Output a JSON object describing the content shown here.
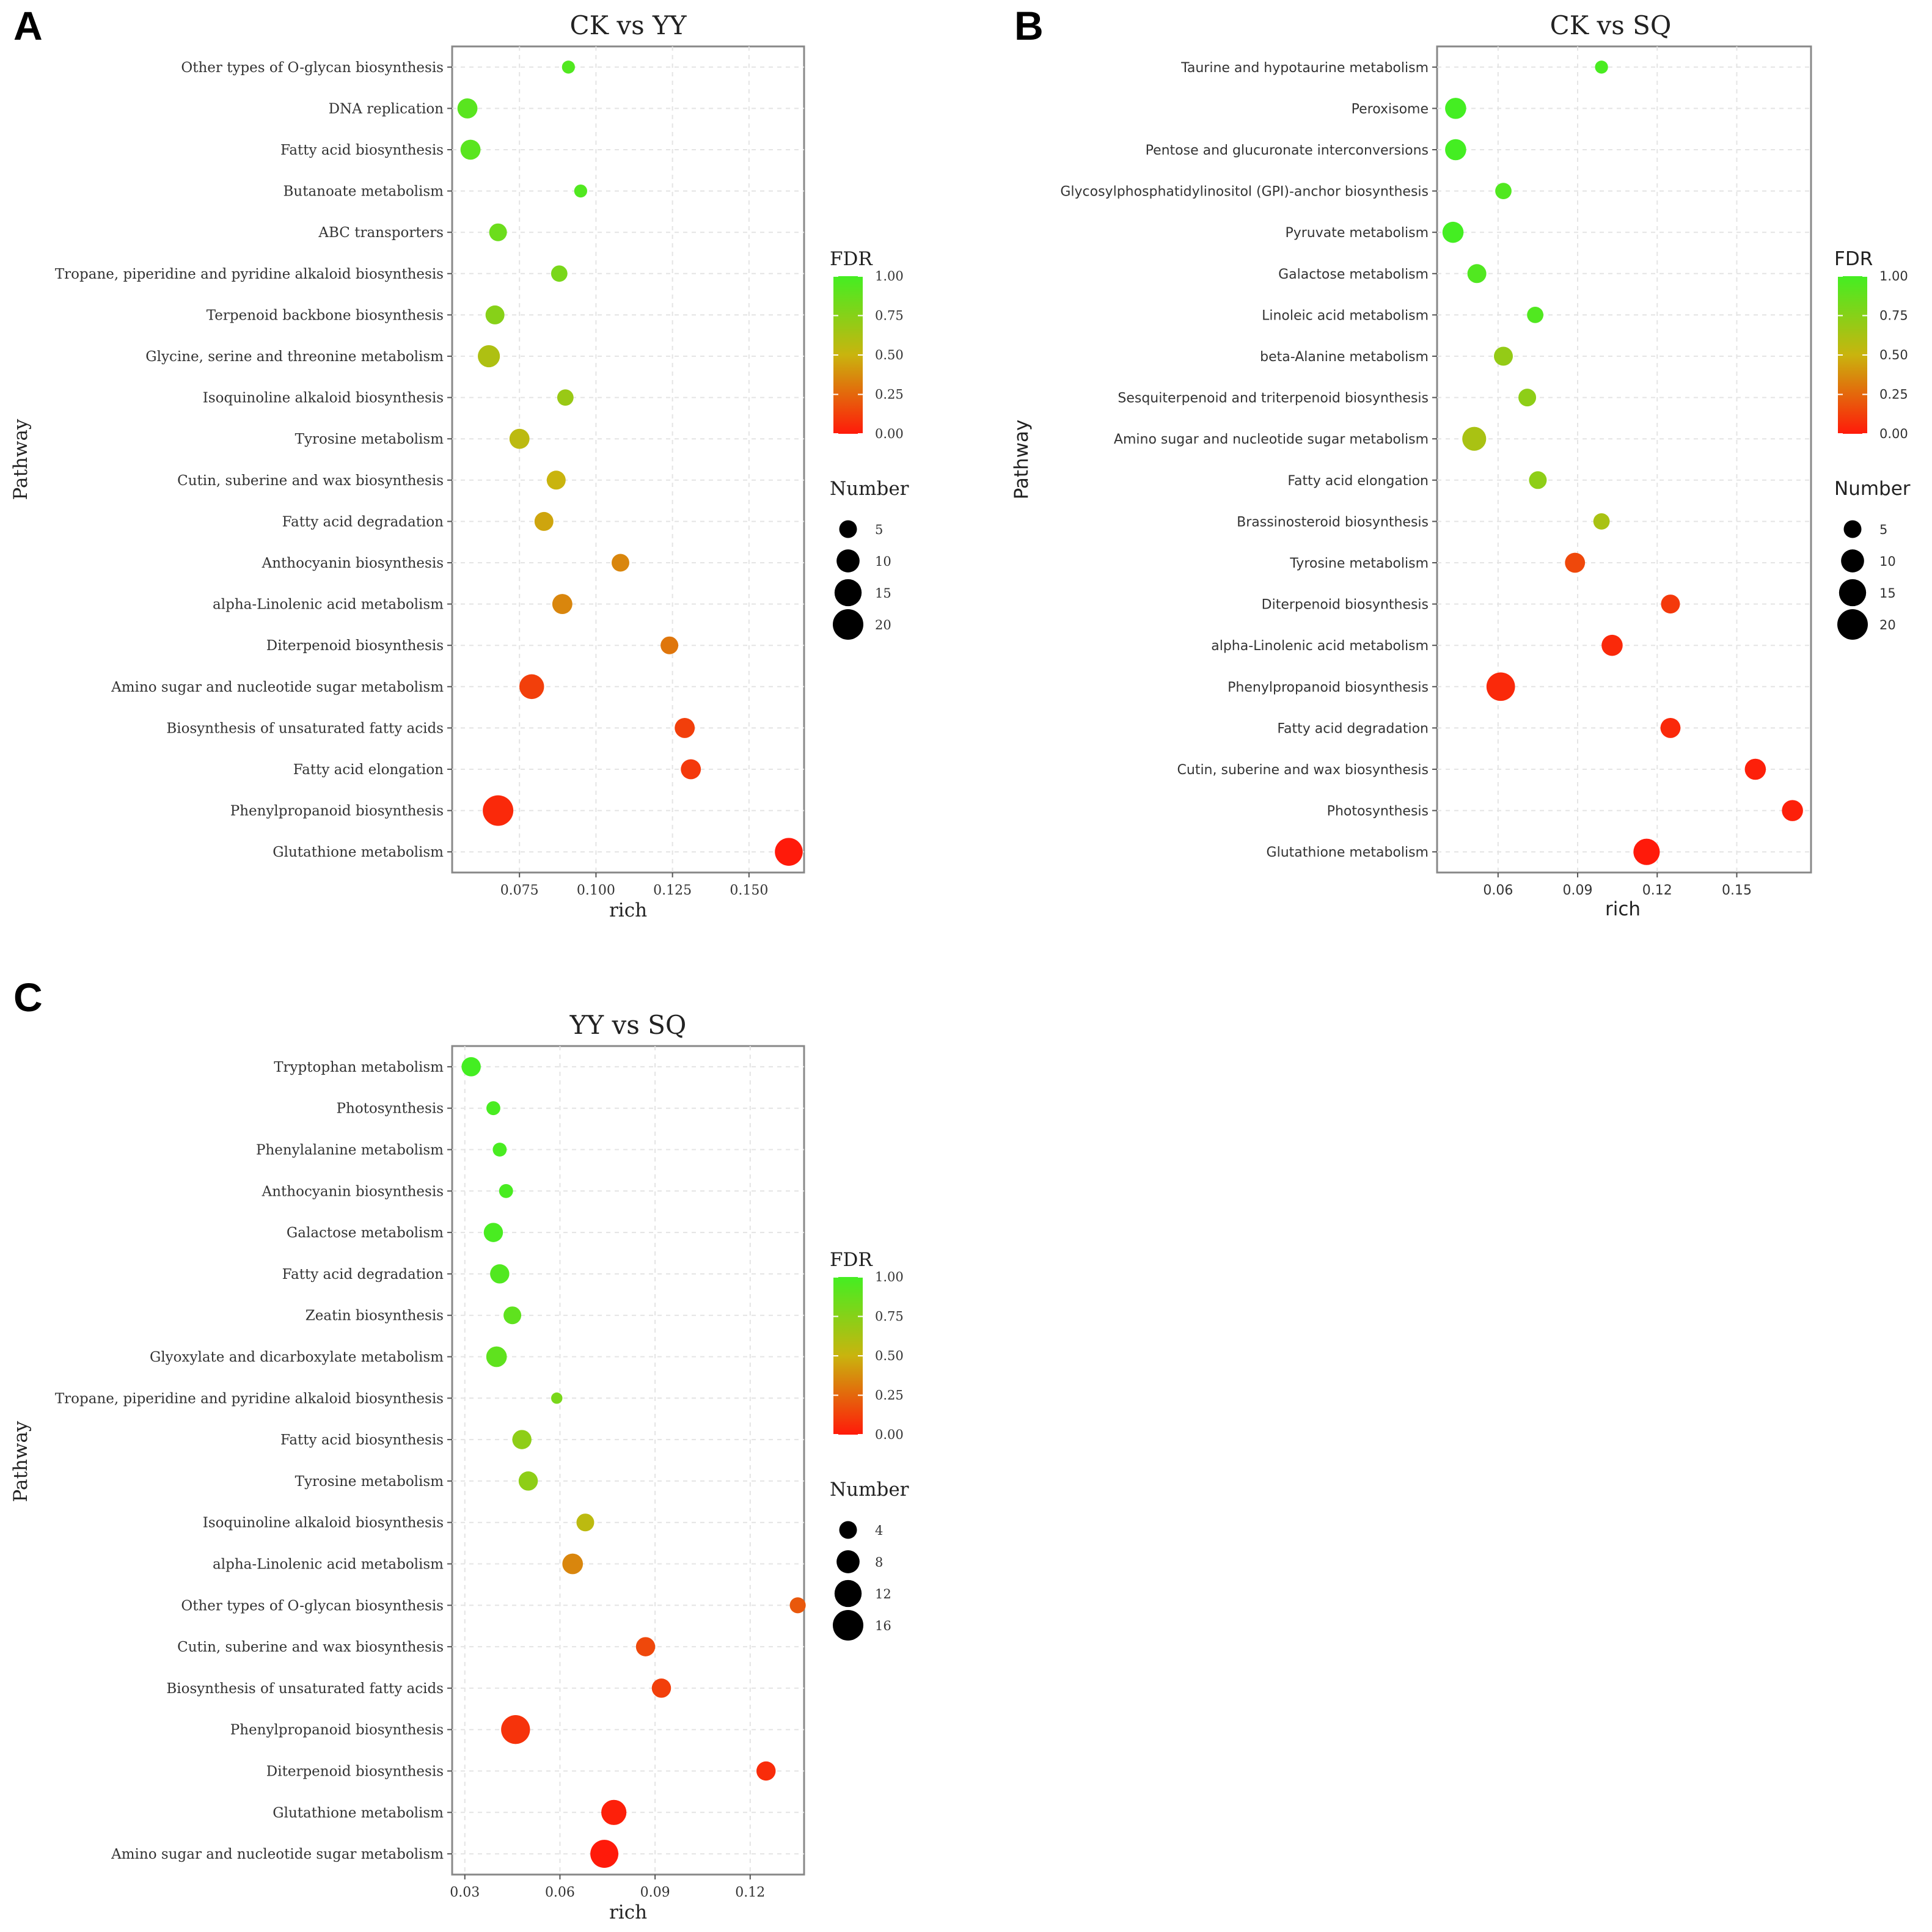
{
  "figure": {
    "panel_letters": [
      "A",
      "B",
      "C"
    ]
  },
  "colors": {
    "high_fdr": "#44ee22",
    "mid_fdr": "#c9b40e",
    "low_fdr": "#ff1a0a"
  },
  "chart_data": [
    {
      "type": "scatter",
      "panel": "A",
      "title": "CK vs YY",
      "xlabel": "rich",
      "ylabel": "Pathway",
      "xlim": [
        0.053,
        0.168
      ],
      "xticks": [
        0.075,
        0.1,
        0.125,
        0.15
      ],
      "xtick_labels": [
        "0.075",
        "0.100",
        "0.125",
        "0.150"
      ],
      "legend_fdr": {
        "title": "FDR",
        "ticks": [
          "1.00",
          "0.75",
          "0.50",
          "0.25",
          "0.00"
        ]
      },
      "legend_number": {
        "title": "Number",
        "values": [
          5,
          10,
          15,
          20
        ],
        "labels": [
          "5",
          "10",
          "15",
          "20"
        ]
      },
      "pathways": [
        {
          "name": "Other types of O-glycan biosynthesis",
          "rich": 0.091,
          "fdr": 0.95,
          "count": 2
        },
        {
          "name": "DNA replication",
          "rich": 0.058,
          "fdr": 0.92,
          "count": 7
        },
        {
          "name": "Fatty acid biosynthesis",
          "rich": 0.059,
          "fdr": 0.92,
          "count": 7
        },
        {
          "name": "Butanoate metabolism",
          "rich": 0.095,
          "fdr": 0.95,
          "count": 2
        },
        {
          "name": "ABC transporters",
          "rich": 0.068,
          "fdr": 0.85,
          "count": 5
        },
        {
          "name": "Tropane, piperidine and pyridine alkaloid biosynthesis",
          "rich": 0.088,
          "fdr": 0.8,
          "count": 4
        },
        {
          "name": "Terpenoid backbone biosynthesis",
          "rich": 0.067,
          "fdr": 0.75,
          "count": 6
        },
        {
          "name": "Glycine, serine and threonine metabolism",
          "rich": 0.065,
          "fdr": 0.6,
          "count": 9
        },
        {
          "name": "Isoquinoline alkaloid biosynthesis",
          "rich": 0.09,
          "fdr": 0.68,
          "count": 4
        },
        {
          "name": "Tyrosine metabolism",
          "rich": 0.075,
          "fdr": 0.55,
          "count": 7
        },
        {
          "name": "Cutin, suberine and wax biosynthesis",
          "rich": 0.087,
          "fdr": 0.5,
          "count": 6
        },
        {
          "name": "Fatty acid degradation",
          "rich": 0.083,
          "fdr": 0.45,
          "count": 6
        },
        {
          "name": "Anthocyanin biosynthesis",
          "rich": 0.108,
          "fdr": 0.35,
          "count": 5
        },
        {
          "name": "alpha-Linolenic acid metabolism",
          "rich": 0.089,
          "fdr": 0.35,
          "count": 7
        },
        {
          "name": "Diterpenoid biosynthesis",
          "rich": 0.124,
          "fdr": 0.3,
          "count": 5
        },
        {
          "name": "Amino sugar and nucleotide sugar metabolism",
          "rich": 0.079,
          "fdr": 0.12,
          "count": 12
        },
        {
          "name": "Biosynthesis of unsaturated fatty acids",
          "rich": 0.129,
          "fdr": 0.12,
          "count": 7
        },
        {
          "name": "Fatty acid elongation",
          "rich": 0.131,
          "fdr": 0.1,
          "count": 7
        },
        {
          "name": "Phenylpropanoid biosynthesis",
          "rich": 0.068,
          "fdr": 0.05,
          "count": 20
        },
        {
          "name": "Glutathione metabolism",
          "rich": 0.163,
          "fdr": 0.0,
          "count": 16
        }
      ]
    },
    {
      "type": "scatter",
      "panel": "B",
      "title": "CK vs SQ",
      "xlabel": "rich",
      "ylabel": "Pathway",
      "xlim": [
        0.037,
        0.178
      ],
      "xticks": [
        0.06,
        0.09,
        0.12,
        0.15
      ],
      "xtick_labels": [
        "0.06",
        "0.09",
        "0.12",
        "0.15"
      ],
      "legend_fdr": {
        "title": "FDR",
        "ticks": [
          "1.00",
          "0.75",
          "0.50",
          "0.25",
          "0.00"
        ]
      },
      "legend_number": {
        "title": "Number",
        "values": [
          5,
          10,
          15,
          20
        ],
        "labels": [
          "5",
          "10",
          "15",
          "20"
        ]
      },
      "pathways": [
        {
          "name": "Taurine and hypotaurine metabolism",
          "rich": 0.099,
          "fdr": 0.98,
          "count": 2
        },
        {
          "name": "Peroxisome",
          "rich": 0.044,
          "fdr": 1.0,
          "count": 8
        },
        {
          "name": "Pentose and glucuronate interconversions",
          "rich": 0.044,
          "fdr": 1.0,
          "count": 8
        },
        {
          "name": "Glycosylphosphatidylinositol (GPI)-anchor biosynthesis",
          "rich": 0.062,
          "fdr": 0.95,
          "count": 4
        },
        {
          "name": "Pyruvate metabolism",
          "rich": 0.043,
          "fdr": 1.0,
          "count": 8
        },
        {
          "name": "Galactose metabolism",
          "rich": 0.052,
          "fdr": 0.95,
          "count": 6
        },
        {
          "name": "Linoleic acid metabolism",
          "rich": 0.074,
          "fdr": 0.95,
          "count": 4
        },
        {
          "name": "beta-Alanine metabolism",
          "rich": 0.062,
          "fdr": 0.7,
          "count": 6
        },
        {
          "name": "Sesquiterpenoid and triterpenoid biosynthesis",
          "rich": 0.071,
          "fdr": 0.72,
          "count": 5
        },
        {
          "name": "Amino sugar and nucleotide sugar metabolism",
          "rich": 0.051,
          "fdr": 0.62,
          "count": 11
        },
        {
          "name": "Fatty acid elongation",
          "rich": 0.075,
          "fdr": 0.72,
          "count": 5
        },
        {
          "name": "Brassinosteroid biosynthesis",
          "rich": 0.099,
          "fdr": 0.62,
          "count": 4
        },
        {
          "name": "Tyrosine metabolism",
          "rich": 0.089,
          "fdr": 0.15,
          "count": 7
        },
        {
          "name": "Diterpenoid biosynthesis",
          "rich": 0.125,
          "fdr": 0.1,
          "count": 6
        },
        {
          "name": "alpha-Linolenic acid metabolism",
          "rich": 0.103,
          "fdr": 0.05,
          "count": 8
        },
        {
          "name": "Phenylpropanoid biosynthesis",
          "rich": 0.061,
          "fdr": 0.05,
          "count": 17
        },
        {
          "name": "Fatty acid degradation",
          "rich": 0.125,
          "fdr": 0.05,
          "count": 7
        },
        {
          "name": "Cutin, suberine and wax biosynthesis",
          "rich": 0.157,
          "fdr": 0.02,
          "count": 8
        },
        {
          "name": "Photosynthesis",
          "rich": 0.171,
          "fdr": 0.02,
          "count": 8
        },
        {
          "name": "Glutathione metabolism",
          "rich": 0.116,
          "fdr": 0.0,
          "count": 14
        }
      ]
    },
    {
      "type": "scatter",
      "panel": "C",
      "title": "YY vs SQ",
      "xlabel": "rich",
      "ylabel": "Pathway",
      "xlim": [
        0.026,
        0.137
      ],
      "xticks": [
        0.03,
        0.06,
        0.09,
        0.12
      ],
      "xtick_labels": [
        "0.03",
        "0.06",
        "0.09",
        "0.12"
      ],
      "legend_fdr": {
        "title": "FDR",
        "ticks": [
          "1.00",
          "0.75",
          "0.50",
          "0.25",
          "0.00"
        ]
      },
      "legend_number": {
        "title": "Number",
        "values": [
          4,
          8,
          12,
          16
        ],
        "labels": [
          "4",
          "8",
          "12",
          "16"
        ]
      },
      "pathways": [
        {
          "name": "Tryptophan metabolism",
          "rich": 0.032,
          "fdr": 1.0,
          "count": 5
        },
        {
          "name": "Photosynthesis",
          "rich": 0.039,
          "fdr": 0.98,
          "count": 2
        },
        {
          "name": "Phenylalanine metabolism",
          "rich": 0.041,
          "fdr": 0.98,
          "count": 2
        },
        {
          "name": "Anthocyanin biosynthesis",
          "rich": 0.043,
          "fdr": 0.98,
          "count": 2
        },
        {
          "name": "Galactose metabolism",
          "rich": 0.039,
          "fdr": 0.98,
          "count": 5
        },
        {
          "name": "Fatty acid degradation",
          "rich": 0.041,
          "fdr": 0.95,
          "count": 5
        },
        {
          "name": "Zeatin biosynthesis",
          "rich": 0.045,
          "fdr": 0.9,
          "count": 4
        },
        {
          "name": "Glyoxylate and dicarboxylate metabolism",
          "rich": 0.04,
          "fdr": 0.9,
          "count": 6
        },
        {
          "name": "Tropane, piperidine and pyridine alkaloid biosynthesis",
          "rich": 0.059,
          "fdr": 0.8,
          "count": 1
        },
        {
          "name": "Fatty acid biosynthesis",
          "rich": 0.048,
          "fdr": 0.72,
          "count": 5
        },
        {
          "name": "Tyrosine metabolism",
          "rich": 0.05,
          "fdr": 0.72,
          "count": 5
        },
        {
          "name": "Isoquinoline alkaloid biosynthesis",
          "rich": 0.068,
          "fdr": 0.55,
          "count": 4
        },
        {
          "name": "alpha-Linolenic acid metabolism",
          "rich": 0.064,
          "fdr": 0.35,
          "count": 6
        },
        {
          "name": "Other types of O-glycan biosynthesis",
          "rich": 0.135,
          "fdr": 0.2,
          "count": 3
        },
        {
          "name": "Cutin, suberine and wax biosynthesis",
          "rich": 0.087,
          "fdr": 0.15,
          "count": 5
        },
        {
          "name": "Biosynthesis of unsaturated fatty acids",
          "rich": 0.092,
          "fdr": 0.12,
          "count": 5
        },
        {
          "name": "Phenylpropanoid biosynthesis",
          "rich": 0.046,
          "fdr": 0.08,
          "count": 14
        },
        {
          "name": "Diterpenoid biosynthesis",
          "rich": 0.125,
          "fdr": 0.06,
          "count": 5
        },
        {
          "name": "Glutathione metabolism",
          "rich": 0.077,
          "fdr": 0.02,
          "count": 10
        },
        {
          "name": "Amino sugar and nucleotide sugar metabolism",
          "rich": 0.074,
          "fdr": 0.0,
          "count": 13
        }
      ]
    }
  ]
}
